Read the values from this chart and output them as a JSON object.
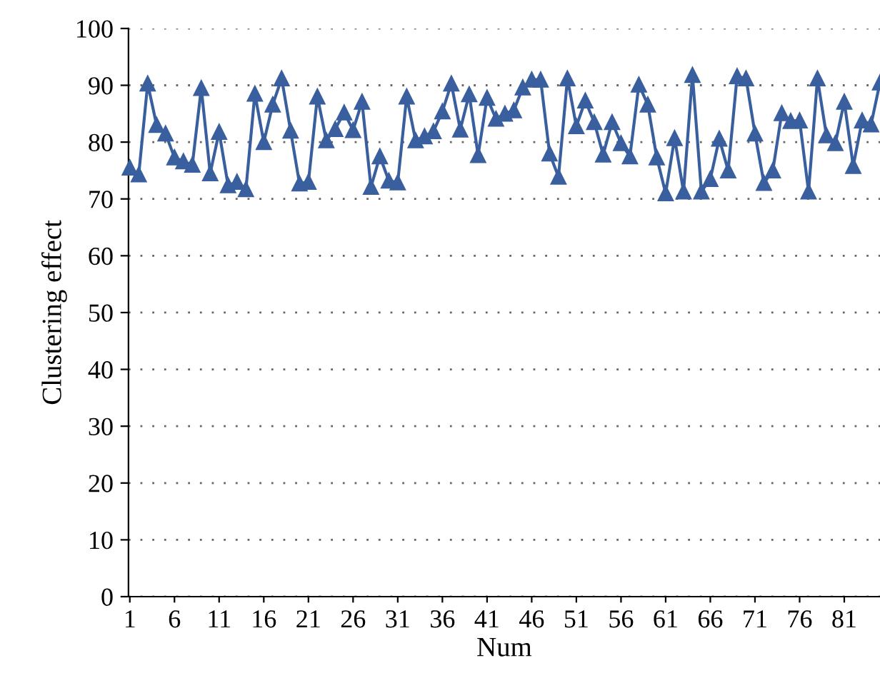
{
  "chart_data": {
    "type": "line",
    "xlabel": "Num",
    "ylabel": "Clustering effect",
    "x": [
      1,
      2,
      3,
      4,
      5,
      6,
      7,
      8,
      9,
      10,
      11,
      12,
      13,
      14,
      15,
      16,
      17,
      18,
      19,
      20,
      21,
      22,
      23,
      24,
      25,
      26,
      27,
      28,
      29,
      30,
      31,
      32,
      33,
      34,
      35,
      36,
      37,
      38,
      39,
      40,
      41,
      42,
      43,
      44,
      45,
      46,
      47,
      48,
      49,
      50,
      51,
      52,
      53,
      54,
      55,
      56,
      57,
      58,
      59,
      60,
      61,
      62,
      63,
      64,
      65,
      66,
      67,
      68,
      69,
      70,
      71,
      72,
      73,
      74,
      75,
      76,
      77,
      78,
      79,
      80,
      81,
      82,
      83,
      84,
      85
    ],
    "series": [
      {
        "color": "#3a5f9e",
        "values": [
          75.5,
          74.3,
          90.3,
          83,
          81.5,
          77.3,
          76.6,
          76,
          89.5,
          74.5,
          81.8,
          72.4,
          73,
          71.7,
          88.5,
          80,
          86.6,
          91.2,
          82,
          72.7,
          73,
          88,
          80.3,
          82.3,
          85.2,
          82.1,
          87.1,
          72.1,
          77.5,
          73.2,
          72.9,
          88,
          80.3,
          81,
          81.9,
          85.4,
          90.3,
          82.2,
          88.4,
          77.7,
          87.8,
          84.1,
          85,
          85.6,
          89.6,
          91,
          91,
          78,
          73.9,
          91.2,
          82.8,
          87.3,
          83.5,
          77.8,
          83.5,
          79.8,
          77.5,
          90.1,
          86.6,
          77.3,
          71,
          80.7,
          71.3,
          91.8,
          71.3,
          73.5,
          80.6,
          75,
          91.6,
          91.2,
          81.5,
          72.8,
          75,
          85.1,
          83.7,
          83.8,
          71.3,
          91.2,
          81.2,
          79.8,
          87.1,
          75.8,
          83.8,
          83.1,
          90.5
        ]
      }
    ],
    "xlim": [
      0.85,
      85
    ],
    "xticks": [
      1,
      6,
      11,
      16,
      21,
      26,
      31,
      36,
      41,
      46,
      51,
      56,
      61,
      66,
      71,
      76,
      81
    ],
    "ylim": [
      0,
      100
    ],
    "yticks": [
      0,
      10,
      20,
      30,
      40,
      50,
      60,
      70,
      80,
      90,
      100
    ],
    "grid": "y",
    "marker": "triangle",
    "line_style": "solid"
  }
}
